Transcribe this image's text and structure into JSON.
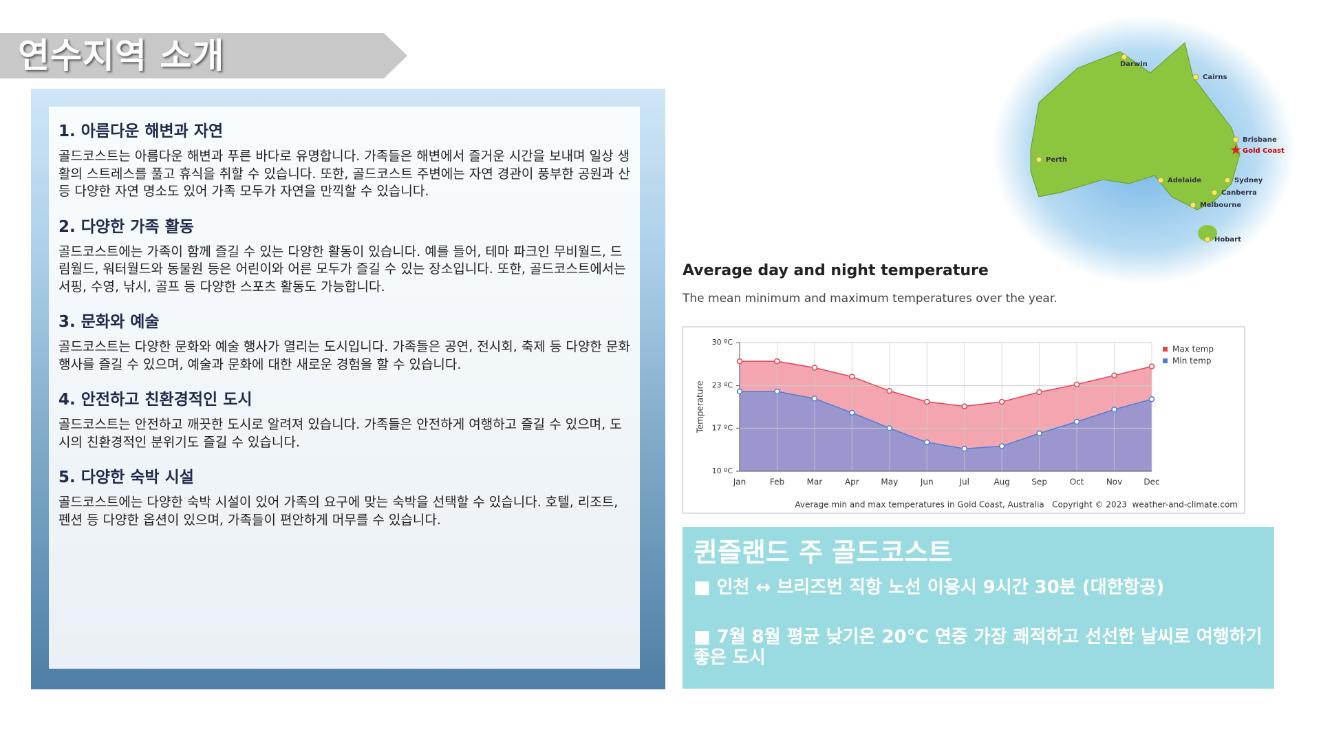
{
  "header": {
    "title": "연수지역 소개"
  },
  "sections": [
    {
      "heading": "1.  아름다운 해변과 자연",
      "body": "골드코스트는 아름다운 해변과 푸른 바다로 유명합니다. 가족들은 해변에서 즐거운 시간을 보내며 일상 생활의 스트레스를 풀고 휴식을 취할 수 있습니다. 또한, 골드코스트 주변에는 자연 경관이 풍부한 공원과 산 등 다양한 자연 명소도 있어 가족 모두가 자연을 만끽할 수 있습니다."
    },
    {
      "heading": "2. 다양한 가족 활동",
      "body": "골드코스트에는 가족이 함께 즐길 수 있는 다양한 활동이 있습니다. 예를 들어, 테마 파크인 무비월드, 드림월드, 워터월드와 동물원 등은 어린이와 어른 모두가 즐길 수 있는 장소입니다. 또한, 골드코스트에서는 서핑, 수영, 낚시, 골프 등 다양한 스포츠 활동도 가능합니다."
    },
    {
      "heading": "3. 문화와 예술",
      "body": "골드코스트는 다양한 문화와 예술 행사가 열리는 도시입니다. 가족들은 공연, 전시회, 축제 등 다양한 문화 행사를 즐길 수 있으며, 예술과 문화에 대한 새로운 경험을 할 수 있습니다."
    },
    {
      "heading": "4. 안전하고 친환경적인 도시",
      "body": "골드코스트는 안전하고 깨끗한 도시로 알려져 있습니다. 가족들은 안전하게 여행하고 즐길 수 있으며, 도시의 친환경적인 분위기도 즐길 수 있습니다."
    },
    {
      "heading": "5. 다양한 숙박 시설",
      "body": "골드코스트에는 다양한 숙박 시설이 있어 가족의 요구에 맞는 숙박을 선택할 수 있습니다. 호텔, 리조트, 펜션 등 다양한 옵션이 있으며, 가족들이 편안하게 머무를 수 있습니다."
    }
  ],
  "map": {
    "cities": [
      "Darwin",
      "Cairns",
      "Brisbane",
      "Gold Coast",
      "Perth",
      "Adelaide",
      "Sydney",
      "Canberra",
      "Melbourne",
      "Hobart"
    ]
  },
  "chart_data": {
    "type": "area",
    "title": "Average day and night temperature",
    "subtitle": "The mean minimum and maximum temperatures over the year.",
    "ylabel": "Temperature",
    "footer": "Average min and max temperatures in Gold Coast, Australia   Copyright © 2023  weather-and-climate.com",
    "categories": [
      "Jan",
      "Feb",
      "Mar",
      "Apr",
      "May",
      "Jun",
      "Jul",
      "Aug",
      "Sep",
      "Oct",
      "Nov",
      "Dec"
    ],
    "series": [
      {
        "name": "Max temp",
        "color": "#e8414f",
        "values": [
          27.1,
          27.1,
          26.1,
          24.7,
          22.5,
          20.8,
          20.1,
          20.8,
          22.3,
          23.5,
          24.9,
          26.3
        ]
      },
      {
        "name": "Min temp",
        "color": "#4a7fd6",
        "values": [
          22.4,
          22.4,
          21.3,
          19.1,
          16.7,
          14.5,
          13.5,
          13.9,
          15.9,
          17.7,
          19.6,
          21.2
        ]
      }
    ],
    "ylim": [
      10,
      30
    ],
    "yticks": [
      {
        "value": 10,
        "label": "10 ºC"
      },
      {
        "value": 16.7,
        "label": "17 ºC"
      },
      {
        "value": 23.3,
        "label": "23 ºC"
      },
      {
        "value": 30,
        "label": "30 ºC"
      }
    ],
    "grid": true,
    "legend": "top-right"
  },
  "info": {
    "title": "퀸즐랜드 주 골드코스트",
    "items": [
      "■ 인천 ↔ 브리즈번 직항 노선 이용시 9시간 30분 (대한항공)",
      "■ 7월 8월 평균 낮기온 20°C 연중 가장 쾌적하고 선선한 날씨로 여행하기 좋은 도시"
    ]
  }
}
